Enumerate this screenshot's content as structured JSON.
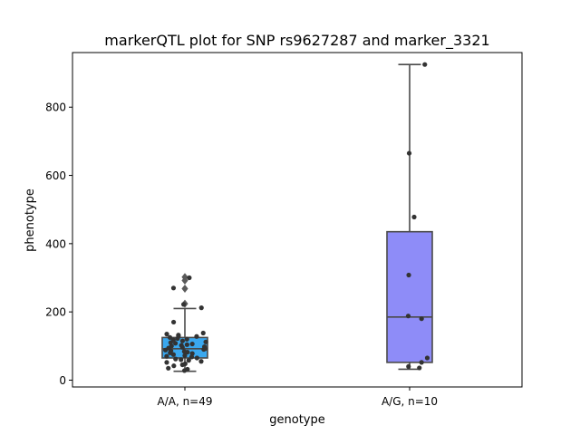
{
  "chart_data": {
    "type": "box",
    "title": "markerQTL plot for SNP rs9627287 and marker_3321",
    "xlabel": "genotype",
    "ylabel": "phenotype",
    "ylim": [
      -20,
      960
    ],
    "yticks": [
      0,
      200,
      400,
      600,
      800
    ],
    "categories": [
      "A/A, n=49",
      "A/G, n=10"
    ],
    "grid": false,
    "boxes": [
      {
        "category": "A/A, n=49",
        "color": "#3aa8ef",
        "q1": 65,
        "median": 92,
        "q3": 125,
        "whisker_low": 26,
        "whisker_high": 210,
        "outliers": [
          224,
          268,
          292,
          302
        ],
        "points": [
          28,
          32,
          35,
          42,
          45,
          48,
          52,
          55,
          58,
          60,
          62,
          65,
          68,
          70,
          72,
          75,
          78,
          80,
          82,
          84,
          86,
          88,
          90,
          92,
          94,
          96,
          98,
          100,
          102,
          104,
          106,
          108,
          110,
          112,
          115,
          118,
          120,
          122,
          125,
          128,
          130,
          132,
          135,
          138,
          170,
          212,
          222,
          270,
          300
        ]
      },
      {
        "category": "A/G, n=10",
        "color": "#8e8cf8",
        "q1": 52,
        "median": 185,
        "q3": 435,
        "whisker_low": 32,
        "whisker_high": 925,
        "outliers": [],
        "points": [
          36,
          40,
          52,
          65,
          180,
          188,
          308,
          478,
          665,
          925
        ]
      }
    ]
  }
}
